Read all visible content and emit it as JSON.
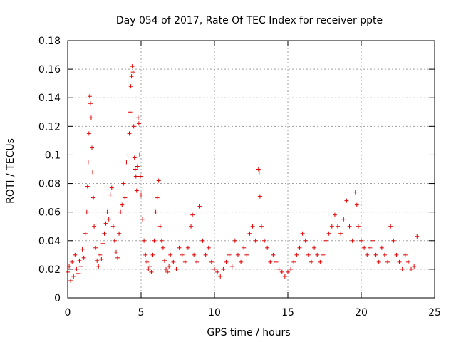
{
  "chart_data": {
    "type": "scatter",
    "title": "Day 054 of 2017, Rate Of TEC Index for receiver ppte",
    "xlabel": "GPS time / hours",
    "ylabel": "ROTI / TECUs",
    "xlim": [
      0,
      25
    ],
    "ylim": [
      0,
      0.18
    ],
    "x_ticks": [
      0,
      5,
      10,
      15,
      20,
      25
    ],
    "y_ticks": [
      0,
      0.02,
      0.04,
      0.06,
      0.08,
      0.1,
      0.12,
      0.14,
      0.16,
      0.18
    ],
    "x_tick_labels": [
      "0",
      "5",
      "10",
      "15",
      "20",
      "25"
    ],
    "y_tick_labels": [
      "0",
      "0.02",
      "0.04",
      "0.06",
      "0.08",
      "0.1",
      "0.12",
      "0.14",
      "0.16",
      "0.18"
    ],
    "grid": true,
    "marker": "plus",
    "color": "#e00000",
    "series": [
      {
        "name": "ROTI",
        "points": [
          [
            0.0,
            0.018
          ],
          [
            0.1,
            0.022
          ],
          [
            0.2,
            0.012
          ],
          [
            0.3,
            0.025
          ],
          [
            0.4,
            0.015
          ],
          [
            0.5,
            0.03
          ],
          [
            0.6,
            0.02
          ],
          [
            0.7,
            0.017
          ],
          [
            0.8,
            0.026
          ],
          [
            0.9,
            0.022
          ],
          [
            1.0,
            0.034
          ],
          [
            1.1,
            0.028
          ],
          [
            1.2,
            0.045
          ],
          [
            1.3,
            0.06
          ],
          [
            1.35,
            0.078
          ],
          [
            1.4,
            0.095
          ],
          [
            1.45,
            0.115
          ],
          [
            1.5,
            0.141
          ],
          [
            1.55,
            0.136
          ],
          [
            1.6,
            0.126
          ],
          [
            1.65,
            0.105
          ],
          [
            1.7,
            0.088
          ],
          [
            1.75,
            0.07
          ],
          [
            1.8,
            0.05
          ],
          [
            1.9,
            0.035
          ],
          [
            2.0,
            0.026
          ],
          [
            2.1,
            0.022
          ],
          [
            2.2,
            0.03
          ],
          [
            2.3,
            0.027
          ],
          [
            2.4,
            0.038
          ],
          [
            2.5,
            0.045
          ],
          [
            2.6,
            0.052
          ],
          [
            2.7,
            0.06
          ],
          [
            2.8,
            0.055
          ],
          [
            2.9,
            0.072
          ],
          [
            3.0,
            0.077
          ],
          [
            3.1,
            0.05
          ],
          [
            3.2,
            0.04
          ],
          [
            3.3,
            0.032
          ],
          [
            3.4,
            0.028
          ],
          [
            3.5,
            0.045
          ],
          [
            3.6,
            0.06
          ],
          [
            3.7,
            0.065
          ],
          [
            3.8,
            0.08
          ],
          [
            3.9,
            0.07
          ],
          [
            4.0,
            0.095
          ],
          [
            4.1,
            0.1
          ],
          [
            4.2,
            0.115
          ],
          [
            4.25,
            0.13
          ],
          [
            4.3,
            0.148
          ],
          [
            4.35,
            0.155
          ],
          [
            4.4,
            0.162
          ],
          [
            4.45,
            0.158
          ],
          [
            4.5,
            0.12
          ],
          [
            4.55,
            0.098
          ],
          [
            4.6,
            0.09
          ],
          [
            4.65,
            0.085
          ],
          [
            4.7,
            0.075
          ],
          [
            4.75,
            0.092
          ],
          [
            4.8,
            0.126
          ],
          [
            4.85,
            0.122
          ],
          [
            4.9,
            0.1
          ],
          [
            4.95,
            0.085
          ],
          [
            5.0,
            0.072
          ],
          [
            5.1,
            0.055
          ],
          [
            5.2,
            0.04
          ],
          [
            5.3,
            0.03
          ],
          [
            5.4,
            0.025
          ],
          [
            5.5,
            0.02
          ],
          [
            5.6,
            0.022
          ],
          [
            5.7,
            0.018
          ],
          [
            5.8,
            0.03
          ],
          [
            5.9,
            0.04
          ],
          [
            6.0,
            0.06
          ],
          [
            6.1,
            0.07
          ],
          [
            6.2,
            0.082
          ],
          [
            6.3,
            0.05
          ],
          [
            6.4,
            0.04
          ],
          [
            6.5,
            0.035
          ],
          [
            6.6,
            0.026
          ],
          [
            6.7,
            0.02
          ],
          [
            6.8,
            0.018
          ],
          [
            6.9,
            0.022
          ],
          [
            7.0,
            0.03
          ],
          [
            7.2,
            0.025
          ],
          [
            7.4,
            0.02
          ],
          [
            7.6,
            0.035
          ],
          [
            7.8,
            0.03
          ],
          [
            8.0,
            0.025
          ],
          [
            8.2,
            0.035
          ],
          [
            8.4,
            0.05
          ],
          [
            8.5,
            0.058
          ],
          [
            8.6,
            0.03
          ],
          [
            8.8,
            0.025
          ],
          [
            9.0,
            0.064
          ],
          [
            9.2,
            0.04
          ],
          [
            9.4,
            0.03
          ],
          [
            9.6,
            0.035
          ],
          [
            9.8,
            0.025
          ],
          [
            10.0,
            0.02
          ],
          [
            10.2,
            0.018
          ],
          [
            10.4,
            0.015
          ],
          [
            10.6,
            0.02
          ],
          [
            10.8,
            0.025
          ],
          [
            11.0,
            0.03
          ],
          [
            11.2,
            0.022
          ],
          [
            11.4,
            0.04
          ],
          [
            11.6,
            0.03
          ],
          [
            11.8,
            0.025
          ],
          [
            12.0,
            0.035
          ],
          [
            12.2,
            0.03
          ],
          [
            12.4,
            0.045
          ],
          [
            12.6,
            0.05
          ],
          [
            12.8,
            0.04
          ],
          [
            13.0,
            0.09
          ],
          [
            13.05,
            0.088
          ],
          [
            13.1,
            0.071
          ],
          [
            13.2,
            0.05
          ],
          [
            13.4,
            0.04
          ],
          [
            13.6,
            0.035
          ],
          [
            13.8,
            0.025
          ],
          [
            14.0,
            0.03
          ],
          [
            14.2,
            0.025
          ],
          [
            14.4,
            0.02
          ],
          [
            14.6,
            0.018
          ],
          [
            14.8,
            0.015
          ],
          [
            15.0,
            0.018
          ],
          [
            15.2,
            0.02
          ],
          [
            15.4,
            0.025
          ],
          [
            15.6,
            0.03
          ],
          [
            15.8,
            0.035
          ],
          [
            16.0,
            0.045
          ],
          [
            16.2,
            0.04
          ],
          [
            16.4,
            0.03
          ],
          [
            16.6,
            0.025
          ],
          [
            16.8,
            0.035
          ],
          [
            17.0,
            0.03
          ],
          [
            17.2,
            0.025
          ],
          [
            17.4,
            0.03
          ],
          [
            17.6,
            0.04
          ],
          [
            17.8,
            0.045
          ],
          [
            18.0,
            0.05
          ],
          [
            18.2,
            0.058
          ],
          [
            18.4,
            0.05
          ],
          [
            18.6,
            0.045
          ],
          [
            18.8,
            0.055
          ],
          [
            19.0,
            0.068
          ],
          [
            19.2,
            0.05
          ],
          [
            19.4,
            0.04
          ],
          [
            19.6,
            0.074
          ],
          [
            19.7,
            0.065
          ],
          [
            19.8,
            0.05
          ],
          [
            20.0,
            0.04
          ],
          [
            20.2,
            0.035
          ],
          [
            20.4,
            0.03
          ],
          [
            20.6,
            0.035
          ],
          [
            20.8,
            0.04
          ],
          [
            21.0,
            0.03
          ],
          [
            21.2,
            0.025
          ],
          [
            21.4,
            0.035
          ],
          [
            21.6,
            0.03
          ],
          [
            21.8,
            0.025
          ],
          [
            22.0,
            0.05
          ],
          [
            22.2,
            0.04
          ],
          [
            22.4,
            0.03
          ],
          [
            22.6,
            0.025
          ],
          [
            22.8,
            0.02
          ],
          [
            23.0,
            0.03
          ],
          [
            23.2,
            0.025
          ],
          [
            23.4,
            0.02
          ],
          [
            23.6,
            0.022
          ],
          [
            23.8,
            0.043
          ]
        ]
      }
    ]
  }
}
